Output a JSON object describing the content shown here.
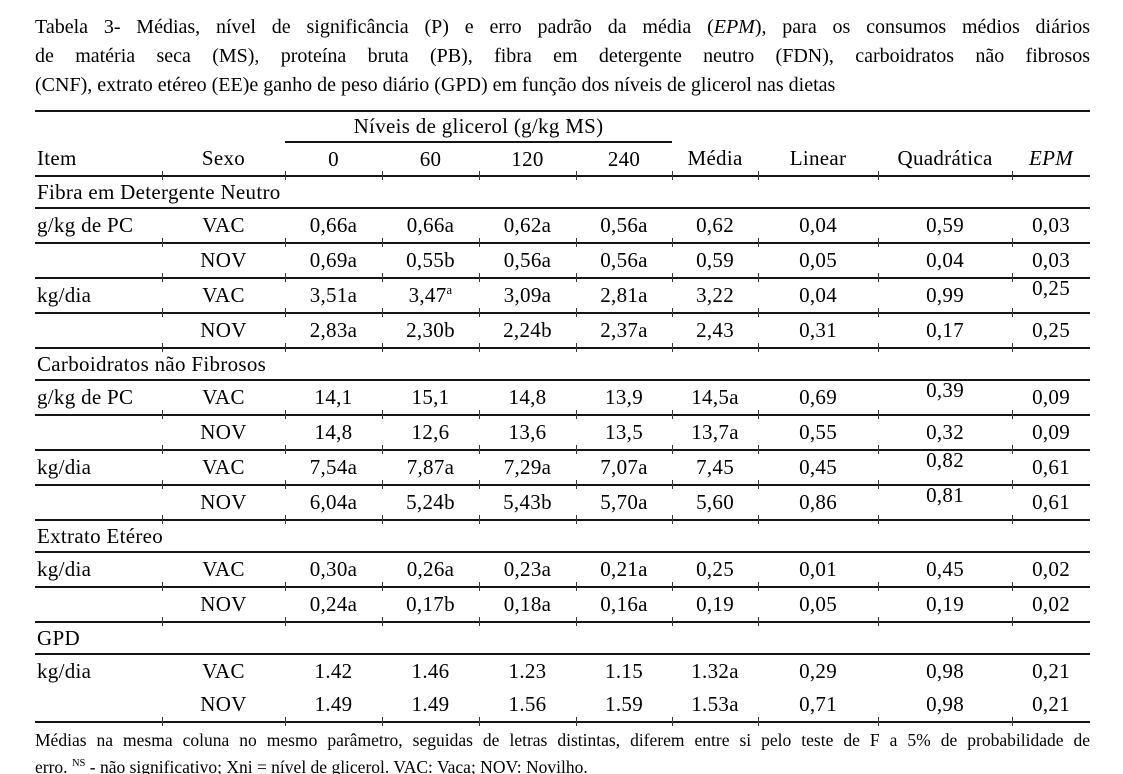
{
  "caption": {
    "line1_pre": "Tabela 3- Médias, nível de significância (P) e erro padrão da média (",
    "line1_italic": "EPM",
    "line1_post": "), para os consumos médios diários",
    "line2": "de matéria seca (MS), proteína bruta (PB), fibra em detergente neutro (FDN), carboidratos não fibrosos",
    "line3": "(CNF), extrato etéreo (EE)e ganho de peso diário (GPD) em função dos níveis de glicerol nas dietas"
  },
  "table": {
    "spanner_label": "Níveis de glicerol (g/kg MS)",
    "columns": [
      "Item",
      "Sexo",
      "0",
      "60",
      "120",
      "240",
      "Média",
      "Linear",
      "Quadrática",
      "EPM"
    ],
    "sections": [
      {
        "title": "Fibra em Detergente Neutro",
        "rows": [
          {
            "item": "g/kg de PC",
            "sexo": "VAC",
            "values": [
              "0,66a",
              "0,66a",
              "0,62a",
              "0,56a",
              "0,62",
              "0,04",
              "0,59",
              "0,03"
            ]
          },
          {
            "item": "",
            "sexo": "NOV",
            "values": [
              "0,69a",
              "0,55b",
              "0,56a",
              "0,56a",
              "0,59",
              "0,05",
              "0,04",
              "0,03"
            ]
          },
          {
            "item": "kg/dia",
            "sexo": "VAC",
            "values": [
              "3,51a",
              "3,47^a",
              "3,09a",
              "2,81a",
              "3,22",
              "0,04",
              "0,99",
              "0,25"
            ],
            "raised": [
              7
            ]
          },
          {
            "item": "",
            "sexo": "NOV",
            "values": [
              "2,83a",
              "2,30b",
              "2,24b",
              "2,37a",
              "2,43",
              "0,31",
              "0,17",
              "0,25"
            ]
          }
        ]
      },
      {
        "title": "Carboidratos não Fibrosos",
        "rows": [
          {
            "item": "g/kg de PC",
            "sexo": "VAC",
            "values": [
              "14,1",
              "15,1",
              "14,8",
              "13,9",
              "14,5a",
              "0,69",
              "0,39",
              "0,09"
            ],
            "raised": [
              6
            ]
          },
          {
            "item": "",
            "sexo": "NOV",
            "values": [
              "14,8",
              "12,6",
              "13,6",
              "13,5",
              "13,7a",
              "0,55",
              "0,32",
              "0,09"
            ]
          },
          {
            "item": "kg/dia",
            "sexo": "VAC",
            "values": [
              "7,54a",
              "7,87a",
              "7,29a",
              "7,07a",
              "7,45",
              "0,45",
              "0,82",
              "0,61"
            ],
            "raised": [
              6
            ]
          },
          {
            "item": "",
            "sexo": "NOV",
            "values": [
              "6,04a",
              "5,24b",
              "5,43b",
              "5,70a",
              "5,60",
              "0,86",
              "0,81",
              "0,61"
            ],
            "raised": [
              6
            ]
          }
        ]
      },
      {
        "title": "Extrato Etéreo",
        "rows": [
          {
            "item": "kg/dia",
            "sexo": "VAC",
            "values": [
              "0,30a",
              "0,26a",
              "0,23a",
              "0,21a",
              "0,25",
              "0,01",
              "0,45",
              "0,02"
            ]
          },
          {
            "item": "",
            "sexo": "NOV",
            "values": [
              "0,24a",
              "0,17b",
              "0,18a",
              "0,16a",
              "0,19",
              "0,05",
              "0,19",
              "0,02"
            ]
          }
        ]
      },
      {
        "title": "GPD",
        "rows": [
          {
            "item": "kg/dia",
            "sexo": "VAC",
            "values": [
              "1.42",
              "1.46",
              "1.23",
              "1.15",
              "1.32a",
              "0,29",
              "0,98",
              "0,21"
            ],
            "no_bottom_border": true
          },
          {
            "item": "",
            "sexo": "NOV",
            "values": [
              "1.49",
              "1.49",
              "1.56",
              "1.59",
              "1.53a",
              "0,71",
              "0,98",
              "0,21"
            ]
          }
        ]
      }
    ]
  },
  "footnote": {
    "line1": "Médias na mesma coluna no mesmo parâmetro, seguidas de letras distintas, diferem entre si pelo teste de F a 5% de probabilidade de",
    "line2_pre": "erro. ",
    "line2_sup": "NS",
    "line2_post": " - não significativo; Xni = nível de glicerol. VAC: Vaca; NOV: Novilho."
  }
}
